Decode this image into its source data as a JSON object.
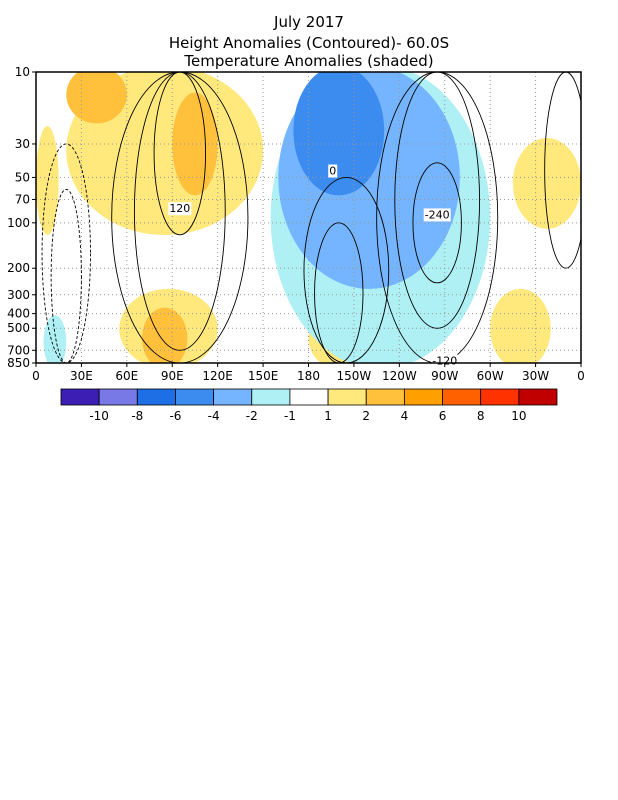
{
  "chart_data": {
    "type": "heatmap",
    "title_lines": [
      "July 2017",
      "Height Anomalies (Contoured)- 60.0S",
      "Temperature Anomalies (shaded)"
    ],
    "x_tick_labels": [
      "0",
      "30E",
      "60E",
      "90E",
      "120E",
      "150E",
      "180",
      "150W",
      "120W",
      "90W",
      "60W",
      "30W",
      "0"
    ],
    "x_ticks_deg": [
      0,
      30,
      60,
      90,
      120,
      150,
      180,
      210,
      240,
      270,
      300,
      330,
      360
    ],
    "x_range_deg": [
      0,
      360
    ],
    "y_tick_labels": [
      "10",
      "30",
      "50",
      "70",
      "100",
      "200",
      "300",
      "400",
      "500",
      "700",
      "850"
    ],
    "y_ticks": [
      10,
      30,
      50,
      70,
      100,
      200,
      300,
      400,
      500,
      700,
      850
    ],
    "y_range": [
      10,
      850
    ],
    "y_scale": "log-pressure (reversed, 10 at top)",
    "grid": "dotted",
    "contour_labels": [
      {
        "text": "120",
        "lon": 95,
        "p": 80
      },
      {
        "text": "0",
        "lon": 196,
        "p": 45
      },
      {
        "text": "-240",
        "lon": 265,
        "p": 88
      },
      {
        "text": "-120",
        "lon": 270,
        "p": 820
      }
    ],
    "shading_regions": [
      {
        "level": "1 to 2",
        "color": "#ffe87c",
        "lon_range": [
          0,
          15
        ],
        "p_range": [
          25,
          110
        ]
      },
      {
        "level": "1 to 2",
        "color": "#ffe87c",
        "lon_range": [
          20,
          150
        ],
        "p_range": [
          10,
          110
        ]
      },
      {
        "level": "2 to 4",
        "color": "#ffc03c",
        "lon_range": [
          20,
          60
        ],
        "p_range": [
          10,
          20
        ]
      },
      {
        "level": "2 to 4",
        "color": "#ffc03c",
        "lon_range": [
          90,
          120
        ],
        "p_range": [
          15,
          60
        ]
      },
      {
        "level": "1 to 2",
        "color": "#ffe87c",
        "lon_range": [
          55,
          120
        ],
        "p_range": [
          300,
          850
        ]
      },
      {
        "level": "2 to 4",
        "color": "#ffc03c",
        "lon_range": [
          70,
          100
        ],
        "p_range": [
          400,
          850
        ]
      },
      {
        "level": "1 to 2",
        "color": "#ffe87c",
        "lon_range": [
          180,
          220
        ],
        "p_range": [
          400,
          850
        ]
      },
      {
        "level": "2 to 4",
        "color": "#ffc03c",
        "lon_range": [
          190,
          210
        ],
        "p_range": [
          450,
          550
        ]
      },
      {
        "level": "1 to 2",
        "color": "#ffe87c",
        "lon_range": [
          315,
          360
        ],
        "p_range": [
          30,
          100
        ]
      },
      {
        "level": "1 to 2",
        "color": "#ffe87c",
        "lon_range": [
          300,
          340
        ],
        "p_range": [
          300,
          850
        ]
      },
      {
        "level": "-1 to -2",
        "color": "#aff0f5",
        "lon_range": [
          155,
          300
        ],
        "p_range": [
          10,
          850
        ]
      },
      {
        "level": "-2 to -4",
        "color": "#75b4ff",
        "lon_range": [
          160,
          280
        ],
        "p_range": [
          10,
          250
        ]
      },
      {
        "level": "-4 to -6",
        "color": "#3c8cf0",
        "lon_range": [
          170,
          230
        ],
        "p_range": [
          10,
          60
        ]
      },
      {
        "level": "-1 to -2",
        "color": "#aff0f5",
        "lon_range": [
          5,
          20
        ],
        "p_range": [
          450,
          850
        ]
      }
    ],
    "colorbar": {
      "colors": [
        "#3c1eb4",
        "#7878e6",
        "#1e6ee6",
        "#3c8cf0",
        "#75b4ff",
        "#aff0f5",
        "#ffffff",
        "#ffe87c",
        "#ffc03c",
        "#ffa000",
        "#ff6000",
        "#ff3200",
        "#c00000"
      ],
      "labels": [
        "-10",
        "-8",
        "-6",
        "-4",
        "-2",
        "-1",
        "1",
        "2",
        "4",
        "6",
        "8",
        "10"
      ]
    }
  }
}
